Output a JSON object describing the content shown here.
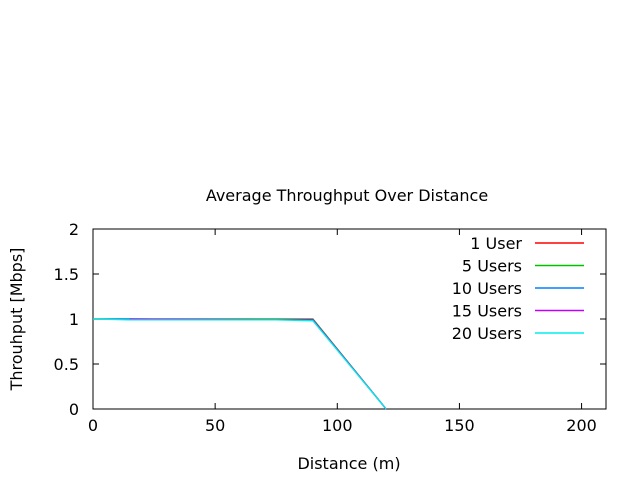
{
  "chart_data": {
    "type": "line",
    "title": "Average Throughput Over Distance",
    "xlabel": "Distance (m)",
    "ylabel": "Throuhput [Mbps]",
    "xlim": [
      0,
      210
    ],
    "ylim": [
      0,
      2
    ],
    "xticks": [
      0,
      50,
      100,
      150,
      200
    ],
    "yticks": [
      0,
      0.5,
      1,
      1.5,
      2
    ],
    "ytick_labels": [
      "0",
      "0.5",
      "1",
      "1.5",
      "2"
    ],
    "grid": false,
    "legend_position": "top-right",
    "series": [
      {
        "name": "1 User",
        "color": "#ff0000",
        "x": [
          0,
          90,
          120
        ],
        "y": [
          1.0,
          1.0,
          0.0
        ]
      },
      {
        "name": "5 Users",
        "color": "#00c000",
        "x": [
          0,
          90,
          120
        ],
        "y": [
          1.0,
          1.0,
          0.0
        ]
      },
      {
        "name": "10 Users",
        "color": "#0080ff",
        "x": [
          0,
          15,
          75,
          90,
          120
        ],
        "y": [
          1.0,
          1.0,
          0.99,
          0.99,
          0.0
        ]
      },
      {
        "name": "15 Users",
        "color": "#c000ff",
        "x": [
          15,
          90,
          120
        ],
        "y": [
          1.0,
          0.99,
          0.0
        ]
      },
      {
        "name": "20 Users",
        "color": "#00eeee",
        "x": [
          0,
          15,
          75,
          90,
          120
        ],
        "y": [
          1.0,
          0.99,
          0.99,
          0.98,
          0.0
        ]
      }
    ]
  }
}
